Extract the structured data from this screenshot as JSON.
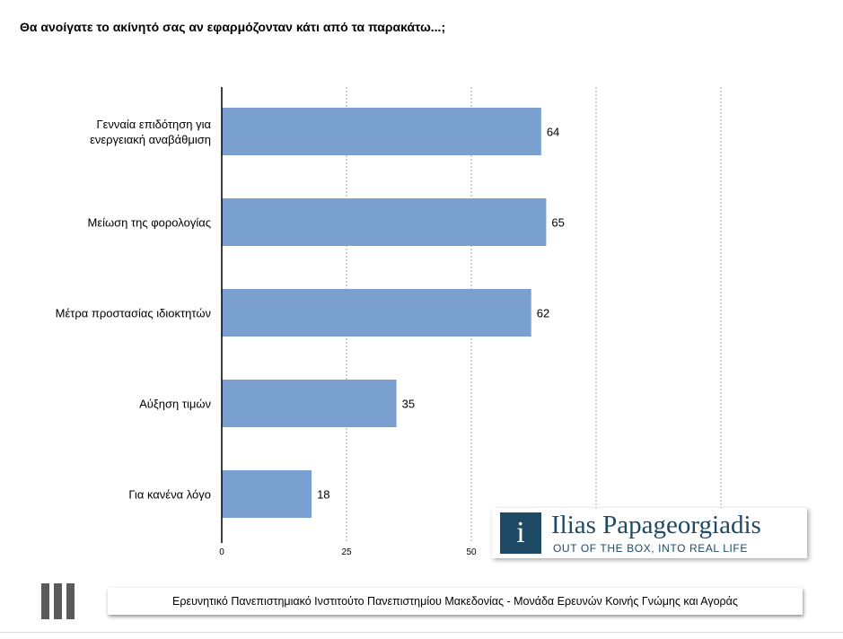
{
  "title": "Θα ανοίγατε το ακίνητό σας αν εφαρμόζονταν κάτι από τα παρακάτω...;",
  "chart_data": {
    "type": "bar",
    "orientation": "horizontal",
    "title": "Θα ανοίγατε το ακίνητό σας αν εφαρμόζονταν κάτι από τα παρακάτω...;",
    "categories": [
      [
        "Γενναία επιδότηση για",
        "ενεργειακή αναβάθμιση"
      ],
      [
        "Μείωση της φορολογίας"
      ],
      [
        "Μέτρα προστασίας ιδιοκτητών"
      ],
      [
        "Αύξηση τιμών"
      ],
      [
        "Για κανένα λόγο"
      ]
    ],
    "values": [
      64,
      65,
      62,
      35,
      18
    ],
    "xlim": [
      0,
      100
    ],
    "ticks": [
      0,
      25,
      50
    ],
    "gridlines": [
      25,
      50,
      75,
      100
    ],
    "bar_color": "#7aa0d0",
    "grid": true,
    "data_labels": true
  },
  "logo": {
    "mark": "i",
    "name": "Ilias Papageorgiadis",
    "tagline": "OUT OF THE BOX, INTO REAL LIFE",
    "color": "#1e4a66"
  },
  "footer": {
    "text": "Ερευνητικό Πανεπιστημιακό Ινστιτούτο Πανεπιστημίου Μακεδονίας - Μονάδα Ερευνών Κοινής Γνώμης και Αγοράς"
  }
}
